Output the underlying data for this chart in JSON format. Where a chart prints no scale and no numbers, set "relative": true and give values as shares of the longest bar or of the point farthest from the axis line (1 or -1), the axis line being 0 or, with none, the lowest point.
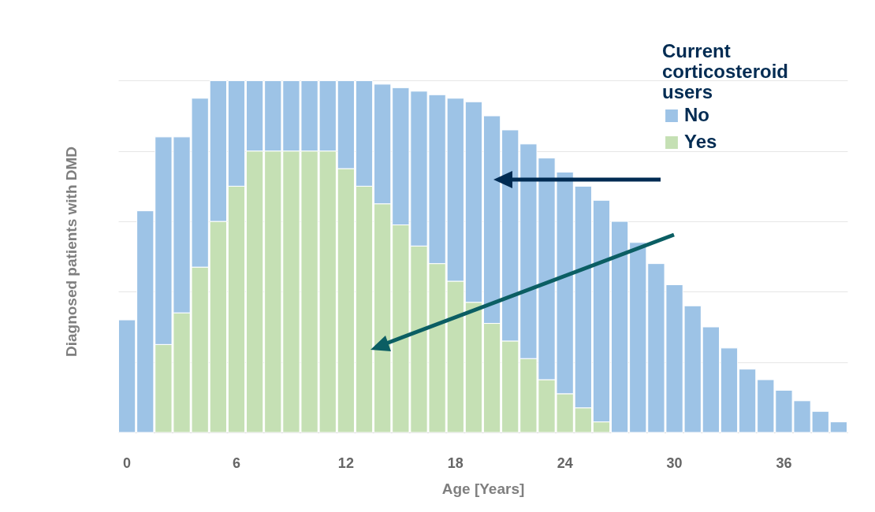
{
  "chart_data": {
    "type": "bar",
    "stacked": true,
    "relative": true,
    "xlabel": "Age [Years]",
    "ylabel": "Diagnosed patients with DMD",
    "legend_title": "Current corticosteroid users",
    "legend": "top right",
    "grid": "y",
    "categories": [
      "0",
      null,
      null,
      null,
      null,
      null,
      "6",
      null,
      null,
      null,
      null,
      null,
      "12",
      null,
      null,
      null,
      null,
      null,
      "18",
      null,
      null,
      null,
      null,
      null,
      "24",
      null,
      null,
      null,
      null,
      null,
      "30",
      null,
      null,
      null,
      null,
      null,
      "36",
      null,
      null,
      null
    ],
    "series": [
      {
        "name": "Yes",
        "color": "#c5e0b4",
        "values": [
          0,
          0,
          0.25,
          0.34,
          0.47,
          0.6,
          0.7,
          0.8,
          0.8,
          0.8,
          0.8,
          0.8,
          0.75,
          0.7,
          0.65,
          0.59,
          0.53,
          0.48,
          0.43,
          0.37,
          0.31,
          0.26,
          0.21,
          0.15,
          0.11,
          0.07,
          0.03,
          0,
          0,
          0,
          0,
          0,
          0,
          0,
          0,
          0,
          0,
          0,
          0,
          0
        ]
      },
      {
        "name": "No",
        "color": "#9dc3e6",
        "values": [
          0.32,
          0.63,
          0.59,
          0.5,
          0.48,
          0.4,
          0.3,
          0.2,
          0.2,
          0.2,
          0.2,
          0.2,
          0.25,
          0.3,
          0.34,
          0.39,
          0.44,
          0.48,
          0.52,
          0.57,
          0.59,
          0.6,
          0.61,
          0.63,
          0.63,
          0.63,
          0.63,
          0.6,
          0.54,
          0.48,
          0.42,
          0.36,
          0.3,
          0.24,
          0.18,
          0.15,
          0.12,
          0.09,
          0.06,
          0.03
        ]
      }
    ]
  }
}
